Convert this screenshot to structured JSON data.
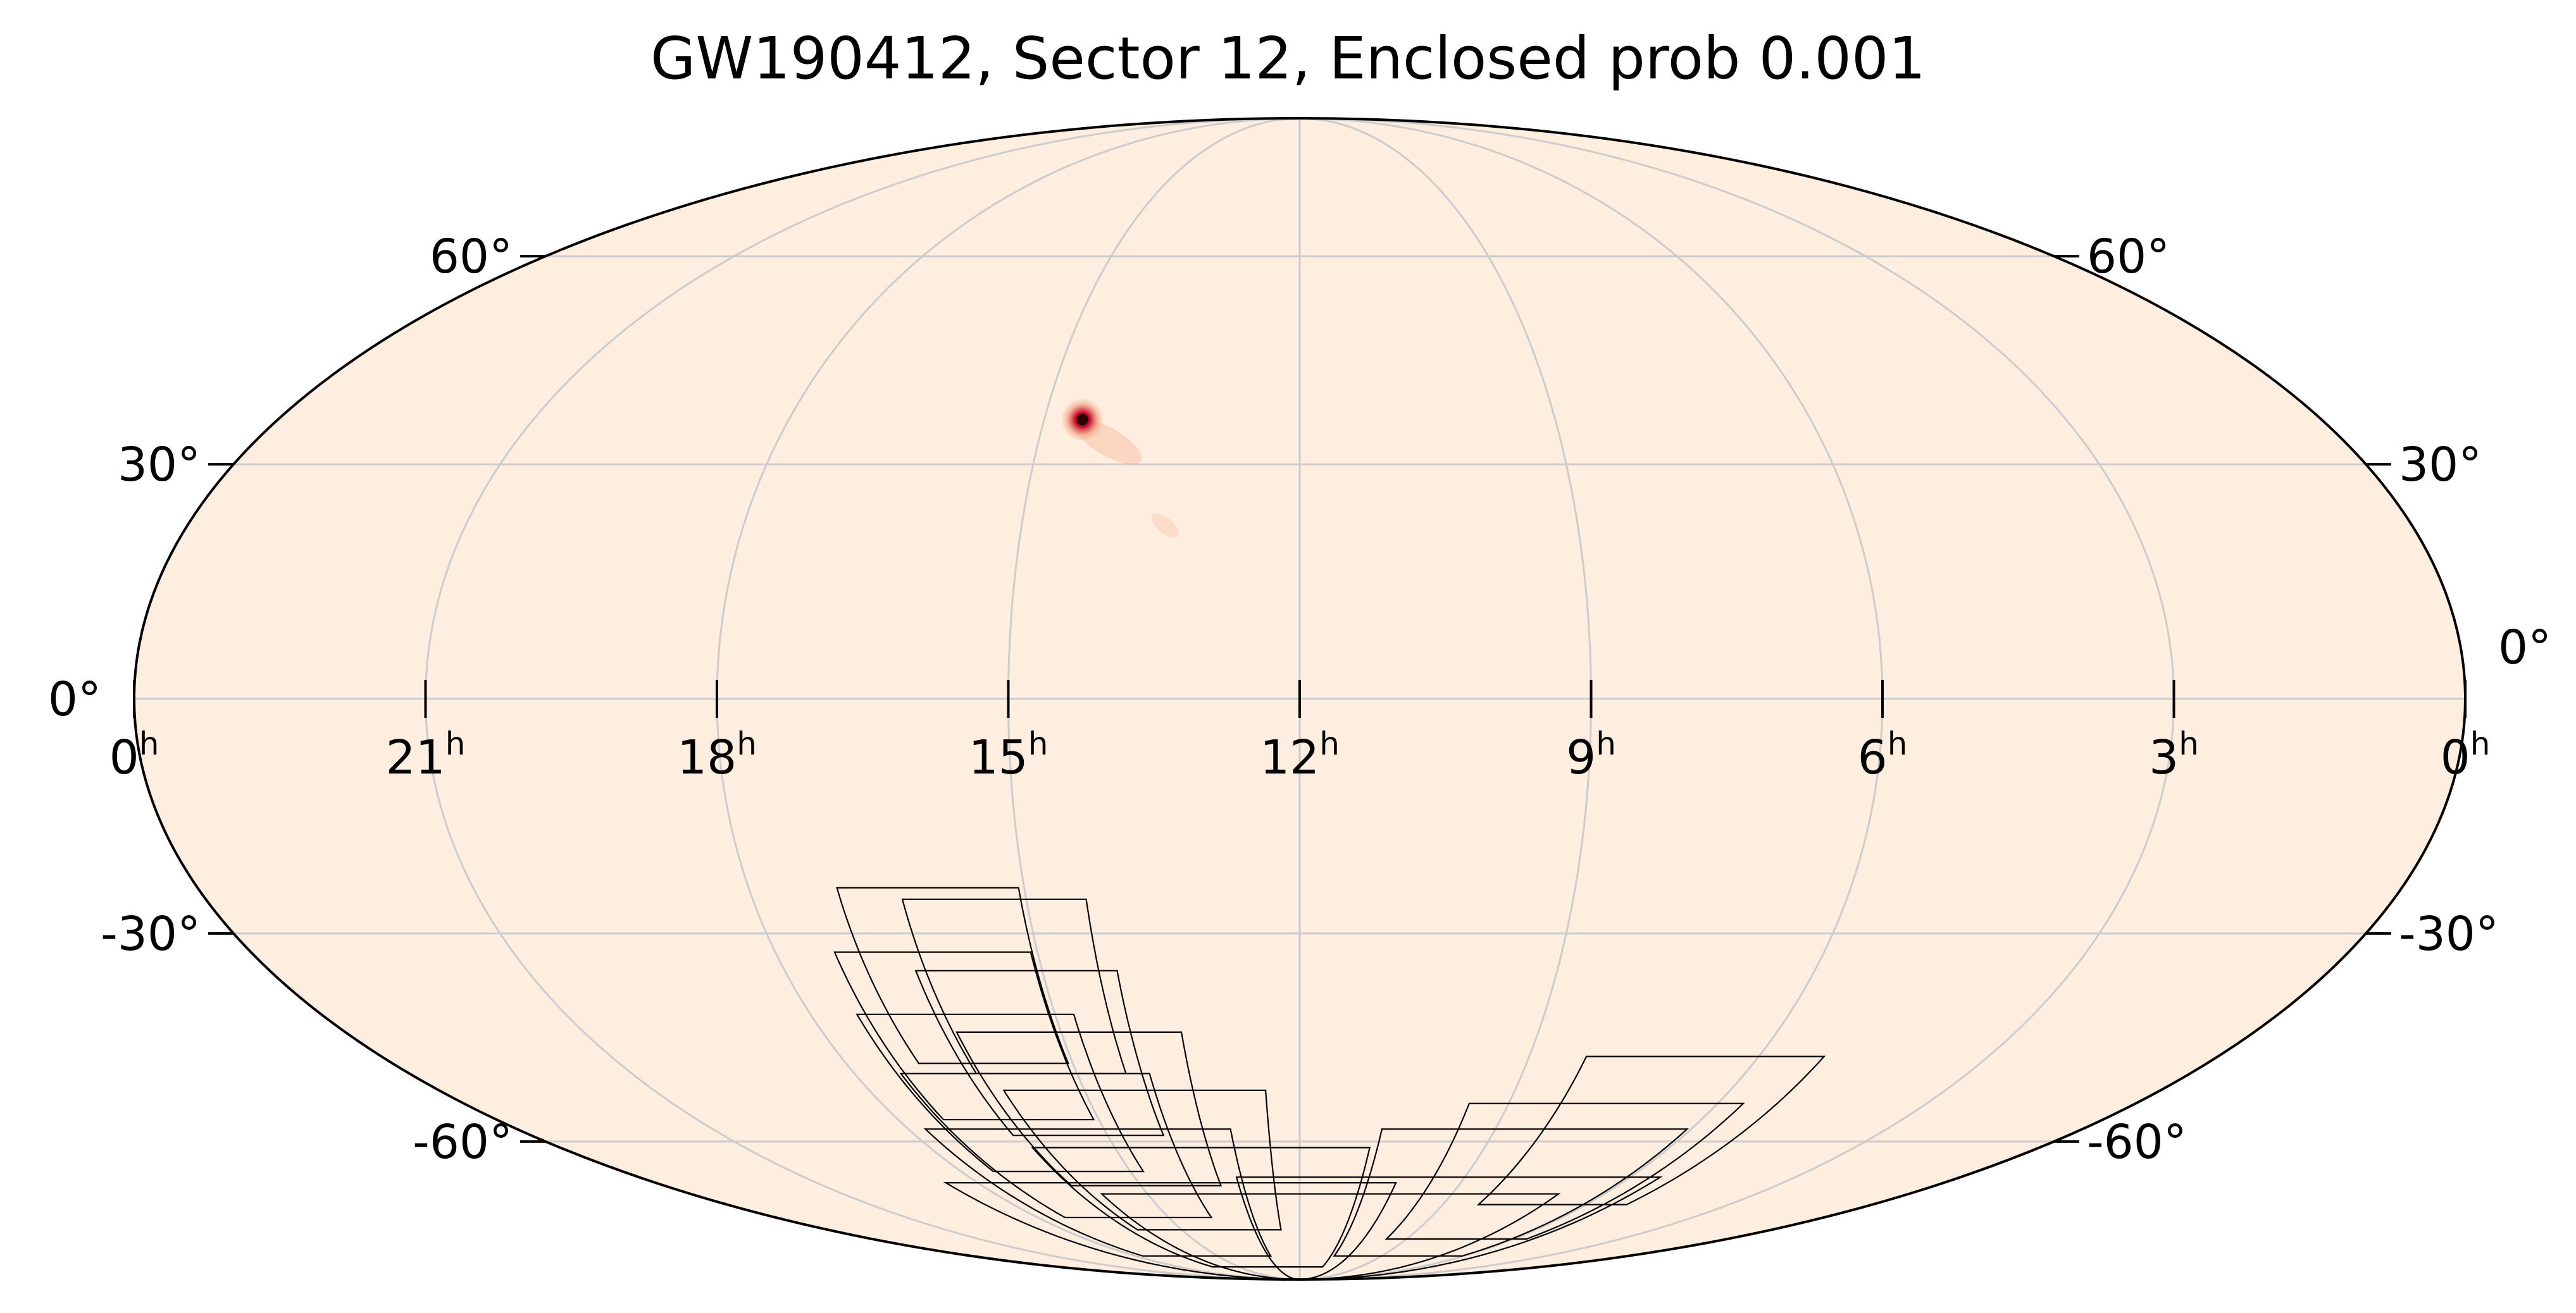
{
  "title": "GW190412, Sector 12, Enclosed prob 0.001",
  "colors": {
    "background_fill": "#feeee0",
    "grid": "#cccccc",
    "outline": "#000000",
    "hotspot_core": "#2a0000",
    "hotspot_mid": "#c8102e",
    "hotspot_outer": "#f4a582"
  },
  "ra_ticks": [
    {
      "hours": 24,
      "label": "0",
      "sup": "h"
    },
    {
      "hours": 21,
      "label": "21",
      "sup": "h"
    },
    {
      "hours": 18,
      "label": "18",
      "sup": "h"
    },
    {
      "hours": 15,
      "label": "15",
      "sup": "h"
    },
    {
      "hours": 12,
      "label": "12",
      "sup": "h"
    },
    {
      "hours": 9,
      "label": "9",
      "sup": "h"
    },
    {
      "hours": 6,
      "label": "6",
      "sup": "h"
    },
    {
      "hours": 3,
      "label": "3",
      "sup": "h"
    },
    {
      "hours": 0,
      "label": "0",
      "sup": "h"
    }
  ],
  "dec_ticks": [
    {
      "deg": 60,
      "label": "60°"
    },
    {
      "deg": 30,
      "label": "30°"
    },
    {
      "deg": 0,
      "label": "0°"
    },
    {
      "deg": -30,
      "label": "-30°"
    },
    {
      "deg": -60,
      "label": "-60°"
    }
  ],
  "hotspot": {
    "ra_hours": 14.55,
    "dec_deg": 36.0
  },
  "sector_camera_tiles": [
    {
      "ra_hours": 16.05,
      "dec_deg": -36.0
    },
    {
      "ra_hours": 15.35,
      "dec_deg": -37.5
    },
    {
      "ra_hours": 16.2,
      "dec_deg": -44.5
    },
    {
      "ra_hours": 15.3,
      "dec_deg": -47.0
    },
    {
      "ra_hours": 16.1,
      "dec_deg": -53.0
    },
    {
      "ra_hours": 14.9,
      "dec_deg": -55.5
    },
    {
      "ra_hours": 15.7,
      "dec_deg": -61.5
    },
    {
      "ra_hours": 14.3,
      "dec_deg": -64.0
    },
    {
      "ra_hours": 15.4,
      "dec_deg": -70.0
    },
    {
      "ra_hours": 13.6,
      "dec_deg": -73.0
    },
    {
      "ra_hours": 14.4,
      "dec_deg": -79.0
    },
    {
      "ra_hours": 11.4,
      "dec_deg": -81.0
    },
    {
      "ra_hours": 9.3,
      "dec_deg": -78.0
    },
    {
      "ra_hours": 8.4,
      "dec_deg": -70.0
    },
    {
      "ra_hours": 7.6,
      "dec_deg": -66.0
    },
    {
      "ra_hours": 6.7,
      "dec_deg": -59.0
    }
  ]
}
